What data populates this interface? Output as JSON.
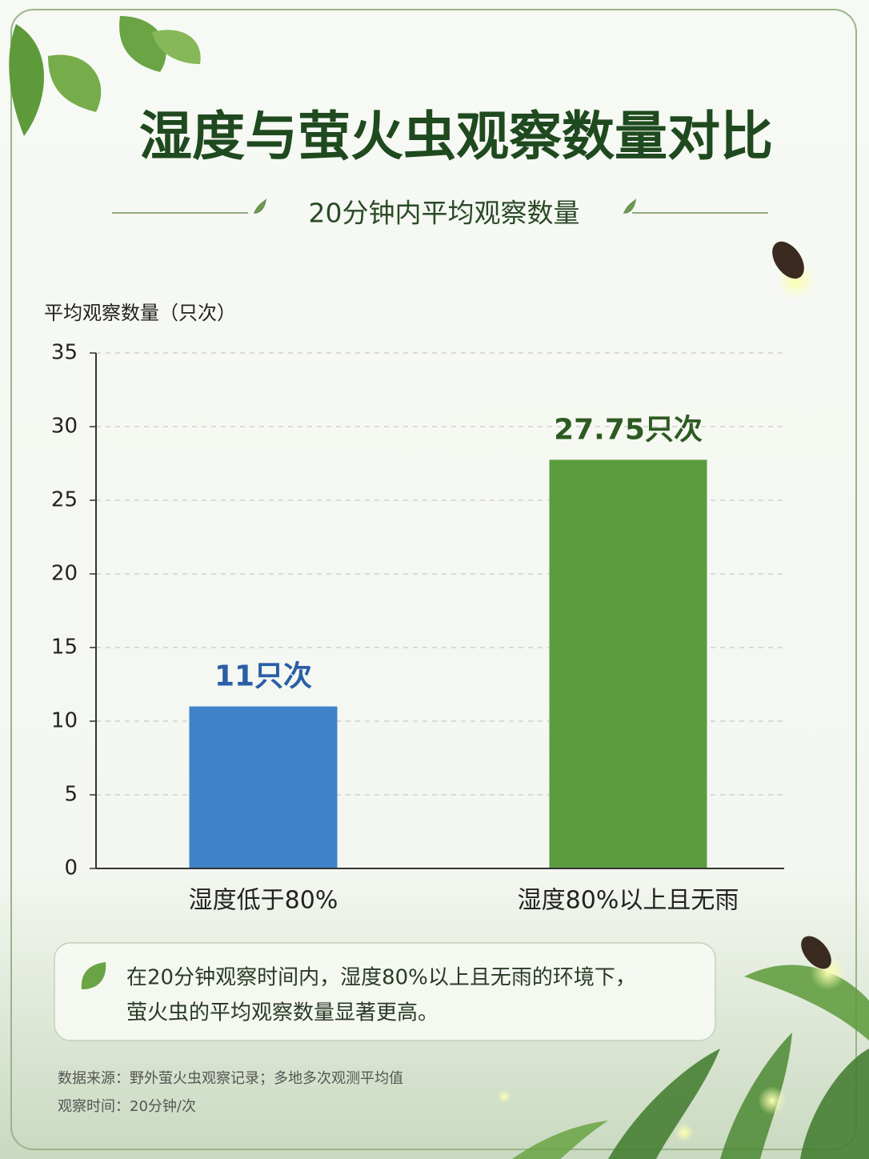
{
  "chart_data": {
    "type": "bar",
    "title": "湿度与萤火虫观察数量对比",
    "subtitle": "20分钟内平均观察数量",
    "y_label": "平均观察数量（只次）",
    "categories": [
      "湿度低于80%",
      "湿度80%以上且无雨"
    ],
    "values": [
      11,
      27.75
    ],
    "value_labels": [
      "11只次",
      "27.75只次"
    ],
    "colors": [
      "#3f82c8",
      "#5c9c3e"
    ],
    "value_label_colors": [
      "#2a5ea6",
      "#2d5a22"
    ],
    "ylim": [
      0,
      35
    ],
    "yticks": [
      0,
      5,
      10,
      15,
      20,
      25,
      30,
      35
    ],
    "grid": true
  },
  "note": [
    "在20分钟观察时间内，湿度80%以上且无雨的环境下，",
    "萤火虫的平均观察数量显著更高。"
  ],
  "footer": [
    "数据来源：野外萤火虫观察记录；多地多次观测平均值",
    "观察时间：20分钟/次"
  ]
}
